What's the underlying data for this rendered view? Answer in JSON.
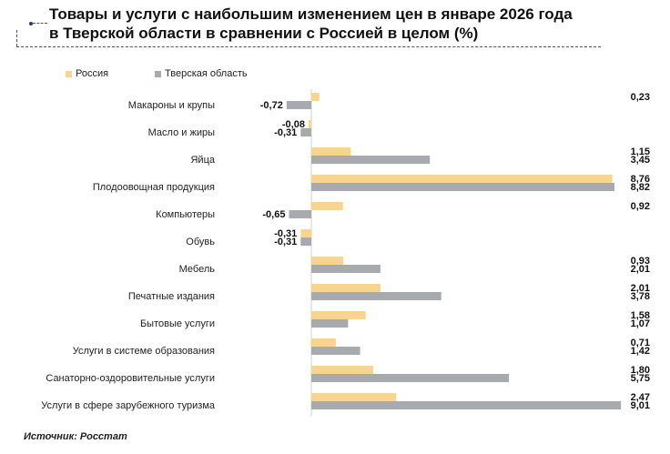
{
  "header": {
    "title_line1": "Товары и услуги с наибольшим изменением цен в январе 2026 года",
    "title_line2": "в Тверской области в сравнении с Россией в целом (%)"
  },
  "source": "Источник: Росстат",
  "colors": {
    "russia": "#f7d590",
    "tver": "#a7abaf",
    "accent": "#1f3b7a"
  },
  "chart_data": {
    "type": "bar",
    "orientation": "horizontal",
    "title": "Товары и услуги с наибольшим изменением цен в январе 2026 года в Тверской области в сравнении с Россией в целом (%)",
    "categories": [
      "Макароны и крупы",
      "Масло и жиры",
      "Яйца",
      "Плодоовощная продукция",
      "Компьютеры",
      "Обувь",
      "Мебель",
      "Печатные издания",
      "Бытовые услуги",
      "Услуги в системе образования",
      "Санаторно-оздоровительные услуги",
      "Услуги в сфере зарубежного туризма"
    ],
    "series": [
      {
        "name": "Россия",
        "values": [
          0.23,
          -0.08,
          1.15,
          8.76,
          0.92,
          -0.31,
          0.93,
          2.01,
          1.58,
          0.71,
          1.8,
          2.47
        ],
        "labels": [
          "0,23",
          "-0,08",
          "1,15",
          "8,76",
          "0,92",
          "-0,31",
          "0,93",
          "2,01",
          "1,58",
          "0,71",
          "1,80",
          "2,47"
        ]
      },
      {
        "name": "Тверская область",
        "values": [
          -0.72,
          -0.31,
          3.45,
          8.82,
          -0.65,
          -0.31,
          2.01,
          3.78,
          1.07,
          1.42,
          5.75,
          9.01
        ],
        "labels": [
          "-0,72",
          "-0,31",
          "3,45",
          "8,82",
          "-0,65",
          "-0,31",
          "2,01",
          "3,78",
          "1,07",
          "1,42",
          "5,75",
          "9,01"
        ]
      }
    ],
    "xlim": [
      -0.8,
      9.1
    ],
    "legend": "top-left"
  }
}
